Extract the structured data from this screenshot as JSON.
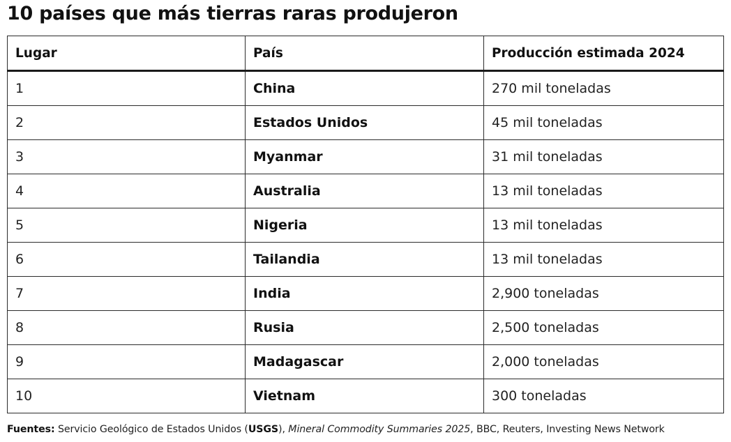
{
  "title": "10 países que más tierras raras produjeron",
  "table": {
    "headers": [
      "Lugar",
      "País",
      "Producción estimada 2024"
    ],
    "rows": [
      {
        "rank": "1",
        "country": "China",
        "production": "270 mil toneladas"
      },
      {
        "rank": "2",
        "country": "Estados Unidos",
        "production": "45 mil toneladas"
      },
      {
        "rank": "3",
        "country": "Myanmar",
        "production": "31 mil toneladas"
      },
      {
        "rank": "4",
        "country": "Australia",
        "production": "13 mil toneladas"
      },
      {
        "rank": "5",
        "country": "Nigeria",
        "production": "13 mil toneladas"
      },
      {
        "rank": "6",
        "country": "Tailandia",
        "production": "13 mil toneladas"
      },
      {
        "rank": "7",
        "country": "India",
        "production": "2,900 toneladas"
      },
      {
        "rank": "8",
        "country": "Rusia",
        "production": "2,500 toneladas"
      },
      {
        "rank": "9",
        "country": "Madagascar",
        "production": "2,000 toneladas"
      },
      {
        "rank": "10",
        "country": "Vietnam",
        "production": "300 toneladas"
      }
    ]
  },
  "sources": {
    "label": "Fuentes:",
    "part1": " Servicio Geológico de Estados Unidos (",
    "usgs": "USGS",
    "part2": "), ",
    "publication": "Mineral Commodity Summaries 2025",
    "part3": ", BBC, Reuters, Investing News Network"
  }
}
